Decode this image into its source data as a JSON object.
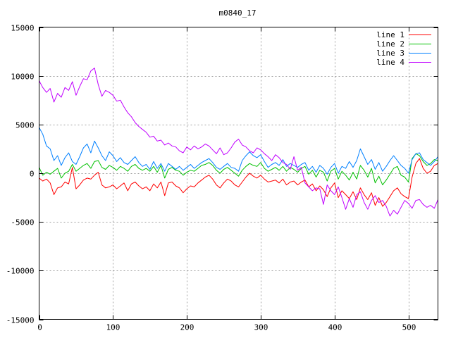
{
  "chart_data": {
    "type": "line",
    "title": "m0840_17",
    "xlabel": "",
    "ylabel": "",
    "xlim": [
      0,
      540
    ],
    "ylim": [
      -15000,
      15000
    ],
    "xticks": [
      0,
      100,
      200,
      300,
      400,
      500
    ],
    "yticks": [
      -15000,
      -10000,
      -5000,
      0,
      5000,
      10000,
      15000
    ],
    "grid": true,
    "legend_position": "top-right",
    "series": [
      {
        "name": "line 1",
        "color": "#ff0000",
        "x": [
          0,
          5,
          10,
          15,
          20,
          25,
          30,
          35,
          40,
          45,
          50,
          55,
          60,
          65,
          70,
          75,
          80,
          85,
          90,
          95,
          100,
          105,
          110,
          115,
          120,
          125,
          130,
          135,
          140,
          145,
          150,
          155,
          160,
          165,
          170,
          175,
          180,
          185,
          190,
          195,
          200,
          205,
          210,
          215,
          220,
          225,
          230,
          235,
          240,
          245,
          250,
          255,
          260,
          265,
          270,
          275,
          280,
          285,
          290,
          295,
          300,
          305,
          310,
          315,
          320,
          325,
          330,
          335,
          340,
          345,
          350,
          355,
          360,
          365,
          370,
          375,
          380,
          385,
          390,
          395,
          400,
          405,
          410,
          415,
          420,
          425,
          430,
          435,
          440,
          445,
          450,
          455,
          460,
          465,
          470,
          475,
          480,
          485,
          490,
          495,
          500,
          505,
          510,
          515,
          520,
          525,
          530,
          535,
          540
        ],
        "values": [
          -500,
          -800,
          -600,
          -1000,
          -2200,
          -1500,
          -1400,
          -900,
          -1100,
          600,
          -1600,
          -1200,
          -700,
          -500,
          -600,
          -200,
          100,
          -1200,
          -1500,
          -1400,
          -1200,
          -1600,
          -1300,
          -1000,
          -1800,
          -1100,
          -900,
          -1300,
          -1600,
          -1400,
          -1800,
          -1100,
          -1500,
          -900,
          -2300,
          -1000,
          -900,
          -1300,
          -1500,
          -2000,
          -1600,
          -1300,
          -1400,
          -1000,
          -700,
          -400,
          -200,
          -600,
          -1200,
          -1500,
          -1000,
          -600,
          -800,
          -1200,
          -1400,
          -900,
          -400,
          0,
          -300,
          -500,
          -200,
          -600,
          -900,
          -800,
          -700,
          -1000,
          -600,
          -1200,
          -900,
          -800,
          -1200,
          -900,
          -700,
          -1400,
          -1100,
          -1800,
          -1300,
          -1700,
          -2400,
          -1500,
          -1000,
          -2500,
          -1800,
          -2200,
          -2600,
          -1900,
          -2700,
          -1500,
          -2200,
          -2700,
          -2000,
          -3300,
          -2500,
          -3400,
          -3000,
          -2400,
          -1800,
          -1500,
          -2100,
          -2400,
          -2600,
          -400,
          1000,
          1500,
          500,
          0,
          200,
          800,
          1000
        ]
      },
      {
        "name": "line 2",
        "color": "#00c000",
        "x": [
          0,
          5,
          10,
          15,
          20,
          25,
          30,
          35,
          40,
          45,
          50,
          55,
          60,
          65,
          70,
          75,
          80,
          85,
          90,
          95,
          100,
          105,
          110,
          115,
          120,
          125,
          130,
          135,
          140,
          145,
          150,
          155,
          160,
          165,
          170,
          175,
          180,
          185,
          190,
          195,
          200,
          205,
          210,
          215,
          220,
          225,
          230,
          235,
          240,
          245,
          250,
          255,
          260,
          265,
          270,
          275,
          280,
          285,
          290,
          295,
          300,
          305,
          310,
          315,
          320,
          325,
          330,
          335,
          340,
          345,
          350,
          355,
          360,
          365,
          370,
          375,
          380,
          385,
          390,
          395,
          400,
          405,
          410,
          415,
          420,
          425,
          430,
          435,
          440,
          445,
          450,
          455,
          460,
          465,
          470,
          475,
          480,
          485,
          490,
          495,
          500,
          505,
          510,
          515,
          520,
          525,
          530,
          535,
          540
        ],
        "values": [
          600,
          -200,
          100,
          -100,
          200,
          500,
          -500,
          0,
          200,
          900,
          200,
          500,
          800,
          1000,
          500,
          1200,
          1300,
          600,
          400,
          800,
          600,
          300,
          700,
          500,
          200,
          700,
          900,
          500,
          300,
          500,
          200,
          700,
          100,
          800,
          -500,
          400,
          600,
          300,
          200,
          -200,
          100,
          300,
          200,
          500,
          800,
          900,
          1100,
          800,
          300,
          0,
          400,
          600,
          300,
          0,
          -300,
          300,
          700,
          1000,
          800,
          700,
          1100,
          500,
          200,
          400,
          600,
          300,
          700,
          200,
          600,
          400,
          100,
          500,
          700,
          -100,
          300,
          -400,
          300,
          100,
          -800,
          200,
          500,
          -600,
          200,
          -200,
          -700,
          100,
          -600,
          800,
          300,
          -400,
          500,
          -1000,
          -300,
          -1200,
          -700,
          -100,
          500,
          700,
          -200,
          -400,
          -900,
          1500,
          2000,
          1800,
          1200,
          800,
          1000,
          1400,
          1300
        ]
      },
      {
        "name": "line 3",
        "color": "#0080ff",
        "x": [
          0,
          5,
          10,
          15,
          20,
          25,
          30,
          35,
          40,
          45,
          50,
          55,
          60,
          65,
          70,
          75,
          80,
          85,
          90,
          95,
          100,
          105,
          110,
          115,
          120,
          125,
          130,
          135,
          140,
          145,
          150,
          155,
          160,
          165,
          170,
          175,
          180,
          185,
          190,
          195,
          200,
          205,
          210,
          215,
          220,
          225,
          230,
          235,
          240,
          245,
          250,
          255,
          260,
          265,
          270,
          275,
          280,
          285,
          290,
          295,
          300,
          305,
          310,
          315,
          320,
          325,
          330,
          335,
          340,
          345,
          350,
          355,
          360,
          365,
          370,
          375,
          380,
          385,
          390,
          395,
          400,
          405,
          410,
          415,
          420,
          425,
          430,
          435,
          440,
          445,
          450,
          455,
          460,
          465,
          470,
          475,
          480,
          485,
          490,
          495,
          500,
          505,
          510,
          515,
          520,
          525,
          530,
          535,
          540
        ],
        "values": [
          4700,
          4000,
          2800,
          2500,
          1300,
          1800,
          800,
          1600,
          2100,
          1200,
          900,
          1700,
          2600,
          3000,
          2100,
          3300,
          2600,
          1800,
          1300,
          2200,
          1800,
          1200,
          1600,
          1100,
          900,
          1300,
          1700,
          1100,
          700,
          900,
          400,
          1200,
          500,
          1000,
          200,
          1000,
          700,
          400,
          700,
          300,
          600,
          900,
          500,
          800,
          1100,
          1300,
          1500,
          1100,
          600,
          400,
          700,
          1000,
          600,
          500,
          200,
          1300,
          1800,
          2200,
          1800,
          1600,
          1900,
          1200,
          600,
          900,
          1100,
          800,
          1400,
          700,
          1000,
          800,
          600,
          900,
          1100,
          300,
          700,
          100,
          800,
          500,
          -100,
          600,
          1000,
          0,
          700,
          500,
          1200,
          600,
          1300,
          2500,
          1700,
          900,
          1400,
          400,
          1100,
          200,
          700,
          1300,
          1800,
          1300,
          800,
          500,
          0,
          1400,
          2000,
          2100,
          1400,
          1100,
          800,
          1200,
          1700
        ]
      },
      {
        "name": "line 4",
        "color": "#c000ff",
        "x": [
          0,
          5,
          10,
          15,
          20,
          25,
          30,
          35,
          40,
          45,
          50,
          55,
          60,
          65,
          70,
          75,
          80,
          85,
          90,
          95,
          100,
          105,
          110,
          115,
          120,
          125,
          130,
          135,
          140,
          145,
          150,
          155,
          160,
          165,
          170,
          175,
          180,
          185,
          190,
          195,
          200,
          205,
          210,
          215,
          220,
          225,
          230,
          235,
          240,
          245,
          250,
          255,
          260,
          265,
          270,
          275,
          280,
          285,
          290,
          295,
          300,
          305,
          310,
          315,
          320,
          325,
          330,
          335,
          340,
          345,
          350,
          355,
          360,
          365,
          370,
          375,
          380,
          385,
          390,
          395,
          400,
          405,
          410,
          415,
          420,
          425,
          430,
          435,
          440,
          445,
          450,
          455,
          460,
          465,
          470,
          475,
          480,
          485,
          490,
          495,
          500,
          505,
          510,
          515,
          520,
          525,
          530,
          535,
          540
        ],
        "values": [
          9500,
          8800,
          8300,
          8700,
          7300,
          8200,
          7800,
          8800,
          8500,
          9400,
          8000,
          8900,
          9700,
          9600,
          10500,
          10800,
          9100,
          7900,
          8500,
          8300,
          8000,
          7400,
          7500,
          6800,
          6200,
          5800,
          5200,
          4800,
          4500,
          4200,
          3700,
          3800,
          3300,
          3400,
          2900,
          3100,
          2800,
          2700,
          2300,
          2100,
          2700,
          2400,
          2800,
          2500,
          2700,
          3000,
          2800,
          2400,
          2000,
          2600,
          1900,
          2100,
          2600,
          3200,
          3500,
          2900,
          2700,
          2300,
          2100,
          2600,
          2400,
          2000,
          1700,
          1300,
          1900,
          1600,
          1100,
          900,
          400,
          1700,
          300,
          600,
          -1000,
          -1400,
          -1800,
          -1500,
          -1600,
          -3200,
          -1200,
          -1800,
          -2200,
          -1400,
          -2500,
          -3700,
          -2600,
          -3500,
          -2200,
          -1900,
          -3000,
          -3700,
          -2800,
          -2300,
          -3000,
          -2800,
          -3400,
          -4400,
          -3800,
          -4200,
          -3500,
          -2800,
          -3100,
          -3600,
          -2800,
          -2700,
          -3200,
          -3500,
          -3300,
          -3600,
          -2700
        ]
      }
    ]
  }
}
